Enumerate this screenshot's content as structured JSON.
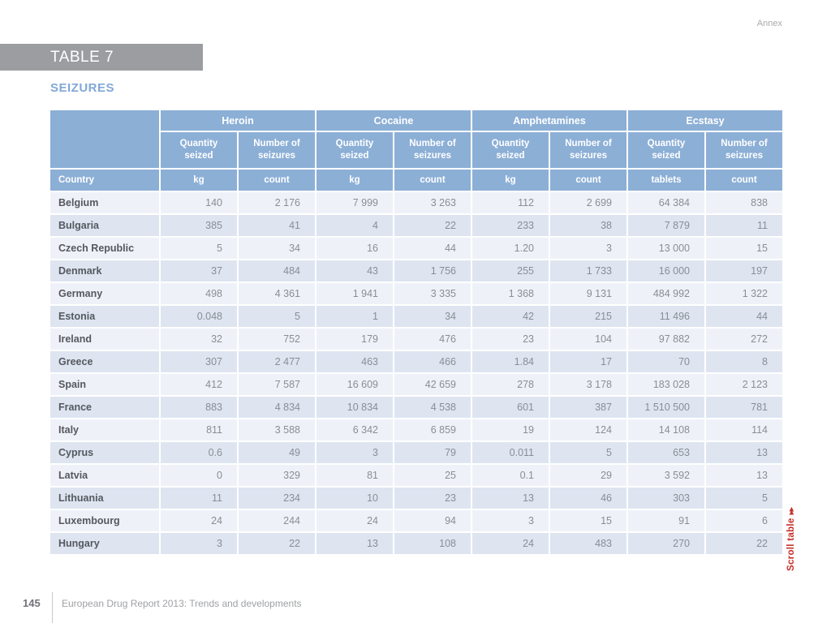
{
  "page": {
    "annex_label": "Annex",
    "band_title": "TABLE 7",
    "section_title": "SEIZURES",
    "page_number": "145",
    "footer_text": "European Drug Report 2013: Trends and developments",
    "scroll_label": "Scroll table",
    "scroll_arrows": "▸▸"
  },
  "colors": {
    "header_blue": "#8cafd6",
    "row_light": "#eef2f8",
    "row_dark": "#dee5f1",
    "band_gray": "#9b9da0",
    "section_title_blue": "#80a8d8",
    "scroll_red": "#c62f28"
  },
  "chart_data": {
    "type": "table",
    "title": "SEIZURES",
    "column_groups": [
      "Heroin",
      "Cocaine",
      "Amphetamines",
      "Ecstasy"
    ],
    "sub_columns": [
      "Quantity seized",
      "Number of seizures"
    ],
    "country_label": "Country",
    "unit_labels": [
      "kg",
      "count",
      "kg",
      "count",
      "kg",
      "count",
      "tablets",
      "count"
    ],
    "rows": [
      {
        "country": "Belgium",
        "values": [
          "140",
          "2 176",
          "7 999",
          "3 263",
          "112",
          "2 699",
          "64 384",
          "838"
        ]
      },
      {
        "country": "Bulgaria",
        "values": [
          "385",
          "41",
          "4",
          "22",
          "233",
          "38",
          "7 879",
          "11"
        ]
      },
      {
        "country": "Czech Republic",
        "values": [
          "5",
          "34",
          "16",
          "44",
          "1.20",
          "3",
          "13 000",
          "15"
        ]
      },
      {
        "country": "Denmark",
        "values": [
          "37",
          "484",
          "43",
          "1 756",
          "255",
          "1 733",
          "16 000",
          "197"
        ]
      },
      {
        "country": "Germany",
        "values": [
          "498",
          "4 361",
          "1 941",
          "3 335",
          "1 368",
          "9 131",
          "484 992",
          "1 322"
        ]
      },
      {
        "country": "Estonia",
        "values": [
          "0.048",
          "5",
          "1",
          "34",
          "42",
          "215",
          "11 496",
          "44"
        ]
      },
      {
        "country": "Ireland",
        "values": [
          "32",
          "752",
          "179",
          "476",
          "23",
          "104",
          "97 882",
          "272"
        ]
      },
      {
        "country": "Greece",
        "values": [
          "307",
          "2 477",
          "463",
          "466",
          "1.84",
          "17",
          "70",
          "8"
        ]
      },
      {
        "country": "Spain",
        "values": [
          "412",
          "7 587",
          "16 609",
          "42 659",
          "278",
          "3 178",
          "183 028",
          "2 123"
        ]
      },
      {
        "country": "France",
        "values": [
          "883",
          "4 834",
          "10 834",
          "4 538",
          "601",
          "387",
          "1 510 500",
          "781"
        ]
      },
      {
        "country": "Italy",
        "values": [
          "811",
          "3 588",
          "6 342",
          "6 859",
          "19",
          "124",
          "14 108",
          "114"
        ]
      },
      {
        "country": "Cyprus",
        "values": [
          "0.6",
          "49",
          "3",
          "79",
          "0.011",
          "5",
          "653",
          "13"
        ]
      },
      {
        "country": "Latvia",
        "values": [
          "0",
          "329",
          "81",
          "25",
          "0.1",
          "29",
          "3 592",
          "13"
        ]
      },
      {
        "country": "Lithuania",
        "values": [
          "11",
          "234",
          "10",
          "23",
          "13",
          "46",
          "303",
          "5"
        ]
      },
      {
        "country": "Luxembourg",
        "values": [
          "24",
          "244",
          "24",
          "94",
          "3",
          "15",
          "91",
          "6"
        ]
      },
      {
        "country": "Hungary",
        "values": [
          "3",
          "22",
          "13",
          "108",
          "24",
          "483",
          "270",
          "22"
        ]
      }
    ]
  }
}
